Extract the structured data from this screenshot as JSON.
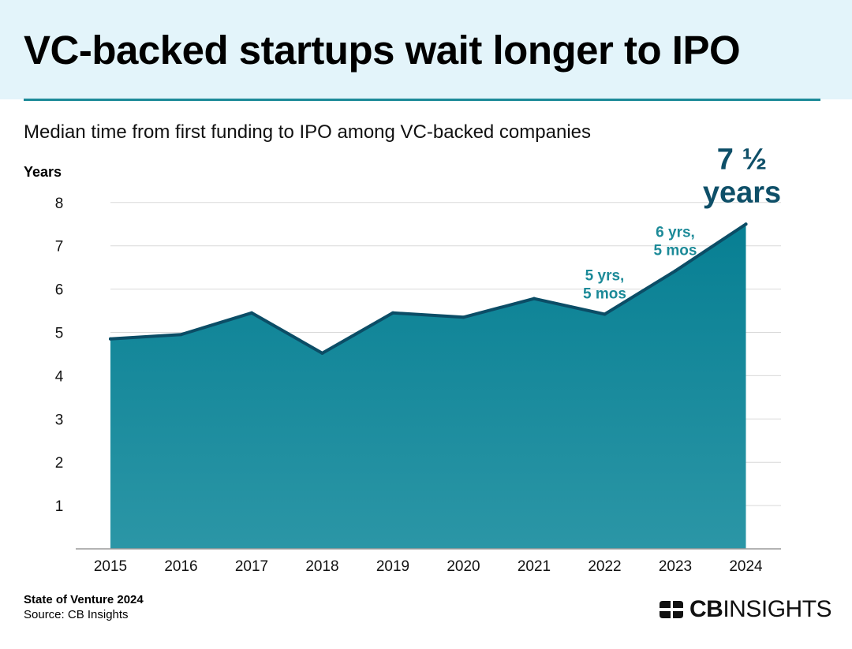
{
  "header": {
    "title": "VC-backed startups wait longer to IPO"
  },
  "chart_data": {
    "type": "area",
    "subtitle": "Median time from first funding to IPO among VC-backed companies",
    "ylabel": "Years",
    "xlabel": "",
    "categories": [
      "2015",
      "2016",
      "2017",
      "2018",
      "2019",
      "2020",
      "2021",
      "2022",
      "2023",
      "2024"
    ],
    "values": [
      4.85,
      4.95,
      5.45,
      4.52,
      5.45,
      5.35,
      5.78,
      5.42,
      6.42,
      7.5
    ],
    "ylim": [
      0,
      8
    ],
    "yticks": [
      "1",
      "2",
      "3",
      "4",
      "5",
      "6",
      "7",
      "8"
    ],
    "grid": true,
    "annotations": [
      {
        "category": "2022",
        "lines": [
          "5 yrs,",
          "5 mos"
        ]
      },
      {
        "category": "2023",
        "lines": [
          "6 yrs,",
          "5 mos"
        ]
      },
      {
        "category": "2024",
        "lines": [
          "7 ½",
          "years"
        ],
        "emphasis": true
      }
    ],
    "colors": {
      "fill_top": "#077f93",
      "fill_bottom": "#2b96a6",
      "line": "#0b4d66",
      "annotation": "#1c8a98",
      "annotation_emphasis": "#0e4f68",
      "grid": "#d9d9d9",
      "axis": "#9a9a9a"
    }
  },
  "footer": {
    "report": "State of Venture 2024",
    "source": "Source: CB Insights"
  },
  "brand": {
    "name_bold": "CB",
    "name_regular": "INSIGHTS",
    "icon": "cb-insights-logo-icon"
  }
}
